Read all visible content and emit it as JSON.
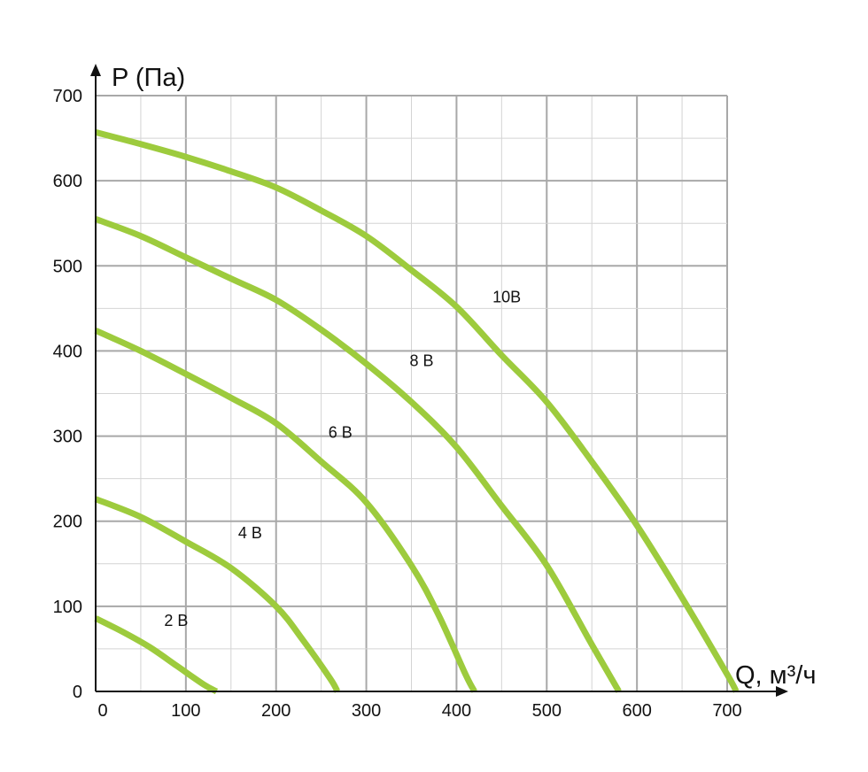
{
  "chart_data": {
    "type": "line",
    "title": "",
    "xlabel": "Q, м³/ч",
    "ylabel": "P (Па)",
    "xlim": [
      0,
      700
    ],
    "ylim": [
      0,
      700
    ],
    "x_ticks": [
      "0",
      "100",
      "200",
      "300",
      "400",
      "500",
      "600",
      "700"
    ],
    "y_ticks": [
      "0",
      "100",
      "200",
      "300",
      "400",
      "500",
      "600",
      "700"
    ],
    "grid": true,
    "legend": "inline",
    "colors": {
      "curve": "#9dcb3d",
      "grid_major": "#a8a8a8",
      "grid_minor": "#d4d4d4",
      "axis": "#111111"
    },
    "series": [
      {
        "name": "2B",
        "x": [
          0,
          30,
          60,
          90,
          120,
          134
        ],
        "y": [
          86,
          70,
          52,
          30,
          8,
          0
        ]
      },
      {
        "name": "4B",
        "x": [
          0,
          50,
          100,
          150,
          200,
          230,
          260,
          268
        ],
        "y": [
          226,
          205,
          176,
          145,
          100,
          60,
          15,
          0
        ]
      },
      {
        "name": "6B",
        "x": [
          0,
          50,
          100,
          150,
          200,
          250,
          300,
          350,
          380,
          410,
          420
        ],
        "y": [
          424,
          400,
          373,
          345,
          315,
          270,
          222,
          148,
          90,
          20,
          0
        ]
      },
      {
        "name": "8B",
        "x": [
          0,
          50,
          100,
          150,
          200,
          250,
          300,
          350,
          400,
          450,
          500,
          550,
          580
        ],
        "y": [
          555,
          535,
          510,
          485,
          460,
          425,
          385,
          340,
          287,
          218,
          148,
          55,
          0
        ]
      },
      {
        "name": "10B",
        "x": [
          0,
          50,
          100,
          150,
          200,
          250,
          300,
          350,
          400,
          450,
          500,
          550,
          600,
          650,
          700,
          710
        ],
        "y": [
          657,
          643,
          628,
          611,
          592,
          565,
          535,
          495,
          452,
          395,
          340,
          270,
          195,
          110,
          20,
          0
        ]
      }
    ],
    "series_label_positions": [
      {
        "name": "2B",
        "x": 76,
        "y": 77
      },
      {
        "name": "4B",
        "x": 158,
        "y": 180
      },
      {
        "name": "6B",
        "x": 258,
        "y": 298
      },
      {
        "name": "8B",
        "x": 348,
        "y": 382
      },
      {
        "name": "10B",
        "x": 440,
        "y": 457
      }
    ]
  }
}
